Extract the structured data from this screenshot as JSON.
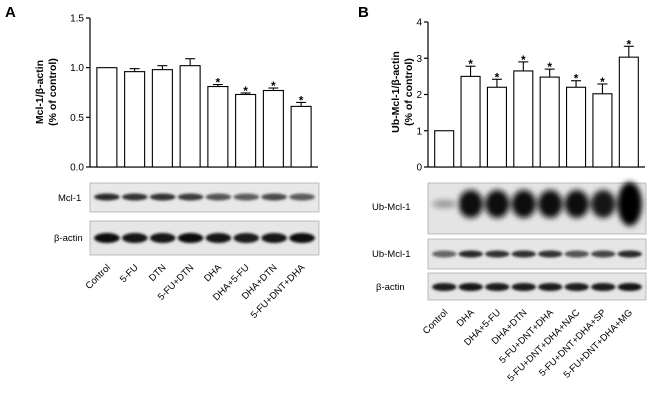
{
  "chart_data": [
    {
      "type": "bar",
      "panel": "A",
      "ylabel_lines": [
        "Mcl-1/β-actin",
        "(% of control)"
      ],
      "ylim": [
        0,
        1.5
      ],
      "yticks": [
        0.0,
        0.5,
        1.0,
        1.5
      ],
      "ytick_labels": [
        "0.0",
        "0.5",
        "1.0",
        "1.5"
      ],
      "categories": [
        "Control",
        "5-FU",
        "DTN",
        "5-FU+DTN",
        "DHA",
        "DHA+5-FU",
        "DHA+DTN",
        "5-FU+DNT+DHA"
      ],
      "values": [
        1.0,
        0.96,
        0.98,
        1.02,
        0.81,
        0.73,
        0.77,
        0.61
      ],
      "errors": [
        0.0,
        0.03,
        0.04,
        0.07,
        0.02,
        0.015,
        0.025,
        0.04
      ],
      "significance": [
        false,
        false,
        false,
        false,
        true,
        true,
        true,
        true
      ],
      "significance_marker": "*",
      "blot_labels": [
        "Mcl-1",
        "β-actin"
      ]
    },
    {
      "type": "bar",
      "panel": "B",
      "ylabel_lines": [
        "Ub-Mcl-1/β-actin",
        "(% of control)"
      ],
      "ylim": [
        0,
        4
      ],
      "yticks": [
        0,
        1,
        2,
        3,
        4
      ],
      "ytick_labels": [
        "0",
        "1",
        "2",
        "3",
        "4"
      ],
      "categories": [
        "Control",
        "DHA",
        "DHA+5-FU",
        "DHA+DTN",
        "5-FU+DNT+DHA",
        "5-FU+DNT+DHA+NAC",
        "5-FU+DNT+DHA+SP",
        "5-FU+DNT+DHA+MG"
      ],
      "values": [
        1.0,
        2.5,
        2.2,
        2.65,
        2.48,
        2.2,
        2.02,
        3.03
      ],
      "errors": [
        0.0,
        0.28,
        0.22,
        0.25,
        0.22,
        0.18,
        0.27,
        0.3
      ],
      "significance": [
        false,
        true,
        true,
        true,
        true,
        true,
        true,
        true
      ],
      "significance_marker": "*",
      "blot_labels": [
        "Ub-Mcl-1",
        "Ub-Mcl-1",
        "β-actin"
      ]
    }
  ]
}
